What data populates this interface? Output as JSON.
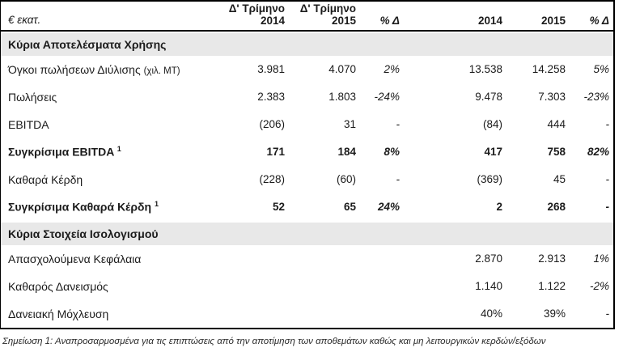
{
  "table": {
    "unit_label": "€ εκατ.",
    "header": {
      "col_q2014": "Δ' Τρίμηνο\n2014",
      "col_q2015": "Δ' Τρίμηνο\n2015",
      "col_qpct": "% Δ",
      "col_y2014": "2014",
      "col_y2015": "2015",
      "col_ypct": "% Δ"
    },
    "sections": [
      {
        "title": "Κύρια Αποτελέσματα Χρήσης",
        "rows": [
          {
            "label": "Όγκοι πωλήσεων Διύλισης",
            "suffix": "(χιλ. MT)",
            "values": [
              "3.981",
              "4.070",
              "2%",
              "13.538",
              "14.258",
              "5%"
            ]
          },
          {
            "label": "Πωλήσεις",
            "values": [
              "2.383",
              "1.803",
              "-24%",
              "9.478",
              "7.303",
              "-23%"
            ]
          },
          {
            "label": "EBITDA",
            "values": [
              "(206)",
              "31",
              "-",
              "(84)",
              "444",
              "-"
            ]
          },
          {
            "label": "Συγκρίσιμα EBITDA",
            "sup": "1",
            "values": [
              "171",
              "184",
              "8%",
              "417",
              "758",
              "82%"
            ]
          },
          {
            "label": "Καθαρά Κέρδη",
            "values": [
              "(228)",
              "(60)",
              "-",
              "(369)",
              "45",
              "-"
            ]
          },
          {
            "label": "Συγκρίσιμα Καθαρά Κέρδη",
            "sup": "1",
            "values": [
              "52",
              "65",
              "24%",
              "2",
              "268",
              "-"
            ]
          }
        ]
      },
      {
        "title": "Κύρια Στοιχεία Ισολογισμού",
        "rows": [
          {
            "label": "Απασχολούμενα Κεφάλαια",
            "values": [
              "",
              "",
              "",
              "2.870",
              "2.913",
              "1%"
            ]
          },
          {
            "label": "Καθαρός Δανεισμός",
            "values": [
              "",
              "",
              "",
              "1.140",
              "1.122",
              "-2%"
            ]
          },
          {
            "label": "Δανειακή Μόχλευση",
            "values": [
              "",
              "",
              "",
              "40%",
              "39%",
              "-"
            ]
          }
        ]
      }
    ],
    "footnote": "Σημείωση 1: Αναπροσαρμοσμένα για τις επιπτώσεις από την αποτίμηση των αποθεμάτων καθώς και μη λειτουργικών κερδών/εξόδων"
  }
}
